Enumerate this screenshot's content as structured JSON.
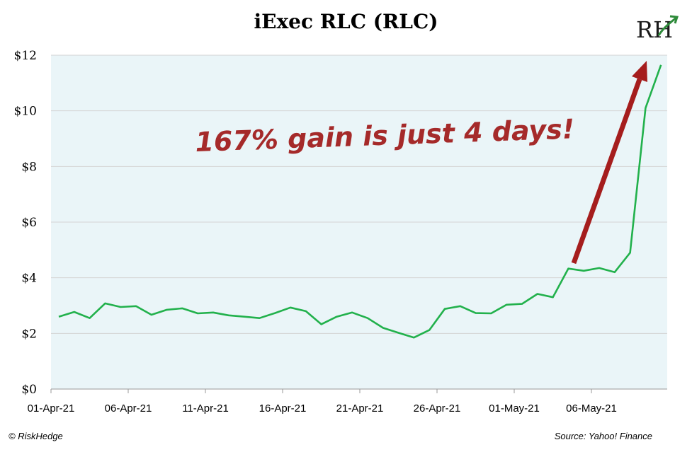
{
  "chart_data": {
    "type": "line",
    "title": "iExec RLC (RLC)",
    "xlabel": "",
    "ylabel": "",
    "ylim": [
      0,
      12
    ],
    "y_ticks": [
      "$0",
      "$2",
      "$4",
      "$6",
      "$8",
      "$10",
      "$12"
    ],
    "x_ticks": [
      "01-Apr-21",
      "06-Apr-21",
      "11-Apr-21",
      "16-Apr-21",
      "21-Apr-21",
      "26-Apr-21",
      "01-May-21",
      "06-May-21"
    ],
    "grid": true,
    "series": [
      {
        "values": [
          2.6,
          2.77,
          2.55,
          3.08,
          2.95,
          2.98,
          2.67,
          2.85,
          2.9,
          2.72,
          2.75,
          2.65,
          2.6,
          2.55,
          2.73,
          2.93,
          2.8,
          2.33,
          2.6,
          2.75,
          2.55,
          2.2,
          2.02,
          1.85,
          2.12,
          2.88,
          2.98,
          2.73,
          2.72,
          3.03,
          3.06,
          3.42,
          3.3,
          4.33,
          4.25,
          4.35,
          4.2,
          4.9,
          10.1,
          11.65
        ]
      }
    ],
    "annotation": "167% gain is just 4 days!",
    "colors": {
      "line": "#22b14c",
      "arrow": "#a51d1d",
      "annotation": "#a52a2a",
      "plot_bg": "#eaf5f8"
    }
  },
  "footer": {
    "credit": "© RiskHedge",
    "source": "Source: Yahoo! Finance"
  },
  "logo": {
    "text": "RH"
  }
}
